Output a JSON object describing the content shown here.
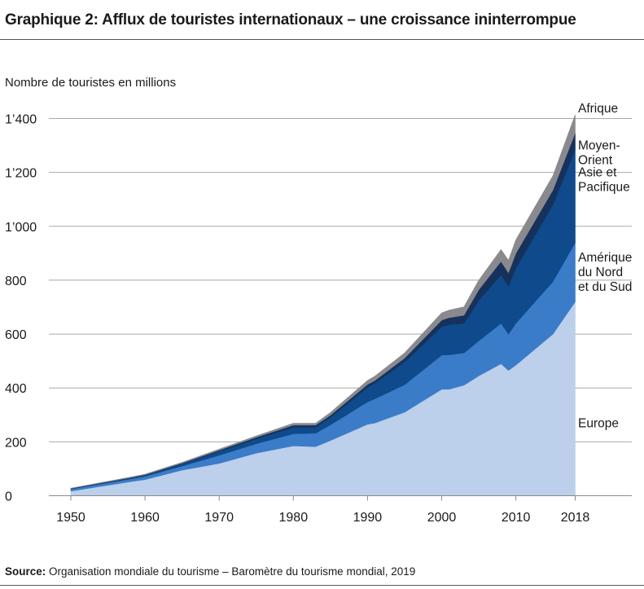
{
  "header": {
    "title": "Graphique 2: Afflux de touristes internationaux – une croissance ininterrompue"
  },
  "chart_data": {
    "type": "area",
    "stacked": true,
    "title": "Graphique 2: Afflux de touristes internationaux – une croissance ininterrompue",
    "ylabel": "Nombre de touristes en millions",
    "xlabel": "",
    "x_ticks": [
      "1950",
      "1960",
      "1970",
      "1980",
      "1990",
      "2000",
      "2010",
      "2018"
    ],
    "y_ticks": [
      "0",
      "200",
      "400",
      "600",
      "800",
      "1’000",
      "1’200",
      "1’400"
    ],
    "ylim": [
      0,
      1400
    ],
    "xlim": [
      1950,
      2018
    ],
    "grid": true,
    "x": [
      1950,
      1958,
      1960,
      1965,
      1970,
      1975,
      1980,
      1983,
      1985,
      1990,
      1991,
      1995,
      2000,
      2001,
      2003,
      2005,
      2008,
      2009,
      2010,
      2015,
      2018
    ],
    "series": [
      {
        "name": "Europe",
        "color": "#bccfeb",
        "values": [
          17,
          52,
          60,
          95,
          120,
          158,
          185,
          182,
          205,
          265,
          270,
          310,
          395,
          395,
          410,
          445,
          490,
          465,
          485,
          600,
          720
        ]
      },
      {
        "name": "Amérique du Nord et du Sud",
        "color": "#3a7cc7",
        "values": [
          8,
          10,
          12,
          15,
          30,
          35,
          45,
          50,
          58,
          83,
          90,
          102,
          127,
          128,
          120,
          130,
          150,
          135,
          155,
          195,
          220
        ]
      },
      {
        "name": "Asie et Pacifique",
        "color": "#0e4a8c",
        "values": [
          1,
          3,
          4,
          8,
          15,
          18,
          24,
          22,
          28,
          55,
          58,
          85,
          105,
          112,
          110,
          150,
          180,
          178,
          205,
          285,
          345
        ]
      },
      {
        "name": "Moyen-Orient",
        "color": "#16325c",
        "values": [
          1,
          2,
          2,
          3,
          4,
          6,
          8,
          8,
          8,
          10,
          10,
          14,
          25,
          26,
          30,
          40,
          50,
          50,
          55,
          55,
          62
        ]
      },
      {
        "name": "Afrique",
        "color": "#8a8a8e",
        "values": [
          1,
          2,
          2,
          3,
          4,
          5,
          7,
          7,
          10,
          15,
          16,
          19,
          27,
          28,
          31,
          35,
          44,
          46,
          50,
          53,
          67
        ]
      }
    ],
    "region_labels": [
      {
        "series": "Afrique",
        "lines": [
          "Afrique"
        ]
      },
      {
        "series": "Moyen-Orient",
        "lines": [
          "Moyen-",
          "Orient"
        ]
      },
      {
        "series": "Asie et Pacifique",
        "lines": [
          "Asie et",
          "Pacifique"
        ]
      },
      {
        "series": "Amérique du Nord et du Sud",
        "lines": [
          "Amérique",
          "du Nord",
          "et du Sud"
        ]
      },
      {
        "series": "Europe",
        "lines": [
          "Europe"
        ]
      }
    ]
  },
  "footer": {
    "source_label": "Source:",
    "source_text": " Organisation mondiale du tourisme – Baromètre du tourisme mondial, 2019"
  }
}
